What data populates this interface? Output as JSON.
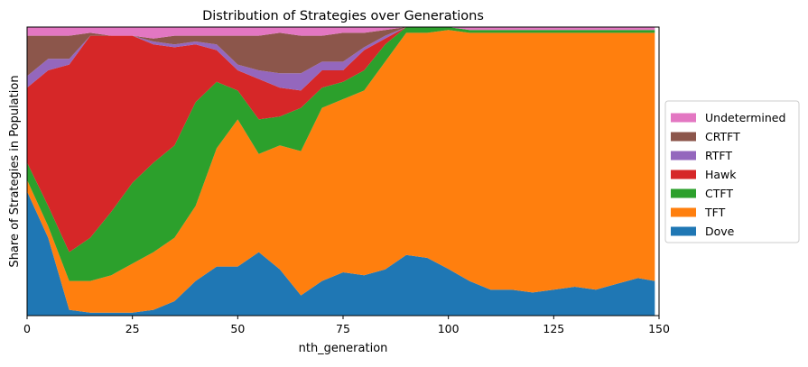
{
  "chart_data": {
    "type": "area",
    "stacked": true,
    "normalized": true,
    "title": "Distribution of Strategies over Generations",
    "xlabel": "nth_generation",
    "ylabel": "Share of Strategies in Population",
    "xlim": [
      0,
      150
    ],
    "ylim": [
      0,
      1
    ],
    "xticks": [
      0,
      25,
      50,
      75,
      100,
      125,
      150
    ],
    "yticks_shown": false,
    "grid": false,
    "legend_position": "right",
    "x": [
      0,
      5,
      10,
      15,
      20,
      25,
      30,
      35,
      40,
      45,
      50,
      55,
      60,
      65,
      70,
      75,
      80,
      85,
      90,
      95,
      100,
      105,
      110,
      115,
      120,
      125,
      130,
      135,
      140,
      145,
      149
    ],
    "series": [
      {
        "name": "Dove",
        "color": "#1f77b4",
        "values": [
          0.43,
          0.27,
          0.02,
          0.01,
          0.01,
          0.01,
          0.02,
          0.05,
          0.12,
          0.17,
          0.17,
          0.22,
          0.16,
          0.07,
          0.12,
          0.15,
          0.14,
          0.16,
          0.21,
          0.2,
          0.16,
          0.12,
          0.09,
          0.09,
          0.08,
          0.09,
          0.1,
          0.09,
          0.11,
          0.13,
          0.12
        ]
      },
      {
        "name": "TFT",
        "color": "#ff7f0e",
        "values": [
          0.04,
          0.04,
          0.1,
          0.11,
          0.13,
          0.17,
          0.2,
          0.22,
          0.26,
          0.41,
          0.51,
          0.34,
          0.43,
          0.5,
          0.6,
          0.6,
          0.64,
          0.72,
          0.77,
          0.78,
          0.82,
          0.86,
          0.89,
          0.89,
          0.9,
          0.89,
          0.88,
          0.89,
          0.87,
          0.85,
          0.86
        ]
      },
      {
        "name": "CTFT",
        "color": "#2ca02c",
        "values": [
          0.06,
          0.07,
          0.1,
          0.15,
          0.22,
          0.28,
          0.31,
          0.32,
          0.36,
          0.23,
          0.1,
          0.12,
          0.1,
          0.15,
          0.07,
          0.06,
          0.07,
          0.06,
          0.02,
          0.02,
          0.01,
          0.01,
          0.01,
          0.01,
          0.01,
          0.01,
          0.01,
          0.01,
          0.01,
          0.01,
          0.01
        ]
      },
      {
        "name": "Hawk",
        "color": "#d62728",
        "values": [
          0.26,
          0.47,
          0.65,
          0.7,
          0.61,
          0.51,
          0.41,
          0.34,
          0.2,
          0.11,
          0.07,
          0.14,
          0.1,
          0.06,
          0.06,
          0.04,
          0.07,
          0.02,
          0.0,
          0.0,
          0.0,
          0.0,
          0.0,
          0.0,
          0.0,
          0.0,
          0.0,
          0.0,
          0.0,
          0.0,
          0.0
        ]
      },
      {
        "name": "RTFT",
        "color": "#9467bd",
        "values": [
          0.04,
          0.04,
          0.02,
          0.0,
          0.0,
          0.0,
          0.01,
          0.01,
          0.01,
          0.02,
          0.02,
          0.03,
          0.05,
          0.06,
          0.03,
          0.03,
          0.01,
          0.01,
          0.0,
          0.0,
          0.0,
          0.0,
          0.0,
          0.0,
          0.0,
          0.0,
          0.0,
          0.0,
          0.0,
          0.0,
          0.0
        ]
      },
      {
        "name": "CRTFT",
        "color": "#8c564b",
        "values": [
          0.14,
          0.08,
          0.08,
          0.01,
          0.0,
          0.0,
          0.01,
          0.03,
          0.02,
          0.03,
          0.1,
          0.12,
          0.14,
          0.13,
          0.09,
          0.1,
          0.05,
          0.02,
          0.0,
          0.0,
          0.0,
          0.0,
          0.0,
          0.0,
          0.0,
          0.0,
          0.0,
          0.0,
          0.0,
          0.0,
          0.0
        ]
      },
      {
        "name": "Undetermined",
        "color": "#e377c2",
        "values": [
          0.03,
          0.03,
          0.03,
          0.02,
          0.03,
          0.03,
          0.04,
          0.03,
          0.03,
          0.03,
          0.03,
          0.03,
          0.02,
          0.03,
          0.03,
          0.02,
          0.02,
          0.01,
          0.0,
          0.0,
          0.0,
          0.01,
          0.01,
          0.01,
          0.01,
          0.01,
          0.01,
          0.01,
          0.01,
          0.01,
          0.01
        ]
      }
    ],
    "legend_order": [
      "Undetermined",
      "CRTFT",
      "RTFT",
      "Hawk",
      "CTFT",
      "TFT",
      "Dove"
    ]
  }
}
